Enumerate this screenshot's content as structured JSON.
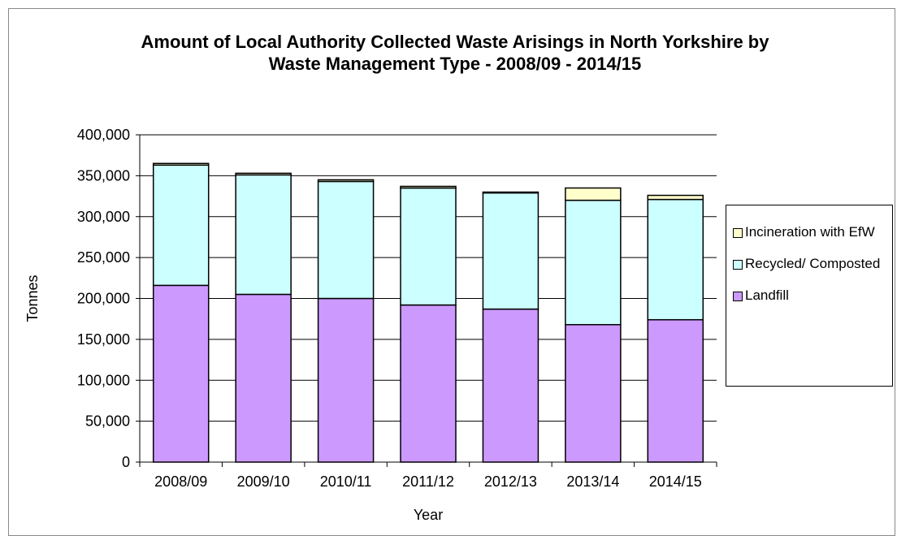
{
  "chart_data": {
    "type": "stacked_bar",
    "title": "Amount of Local Authority Collected Waste Arisings in North Yorkshire by Waste Management Type - 2008/09 - 2014/15",
    "x_label": "Year",
    "y_label": "Tonnes",
    "categories": [
      "2008/09",
      "2009/10",
      "2010/11",
      "2011/12",
      "2012/13",
      "2013/14",
      "2014/15"
    ],
    "series": [
      {
        "name": "Landfill",
        "color": "#cc99ff",
        "values": [
          216000,
          205000,
          200000,
          192000,
          187000,
          168000,
          174000
        ]
      },
      {
        "name": "Recycled/ Composted",
        "color": "#ccffff",
        "values": [
          147000,
          146000,
          143000,
          143000,
          142000,
          152000,
          147000
        ]
      },
      {
        "name": "Incineration with EfW",
        "color": "#ffffcc",
        "values": [
          2000,
          2000,
          2000,
          2000,
          1000,
          15000,
          5000
        ]
      }
    ],
    "ylim": [
      0,
      400000
    ],
    "yticks": [
      0,
      {
        "value": 50000,
        "label": "50,000"
      },
      {
        "value": 100000,
        "label": "100,000"
      },
      {
        "value": 150000,
        "label": "150,000"
      },
      {
        "value": 200000,
        "label": "200,000"
      },
      {
        "value": 250000,
        "label": "250,000"
      },
      {
        "value": 300000,
        "label": "300,000"
      },
      {
        "value": 350000,
        "label": "350,000"
      },
      {
        "value": 400000,
        "label": "400,000"
      }
    ],
    "grid": true,
    "legend": "right"
  }
}
